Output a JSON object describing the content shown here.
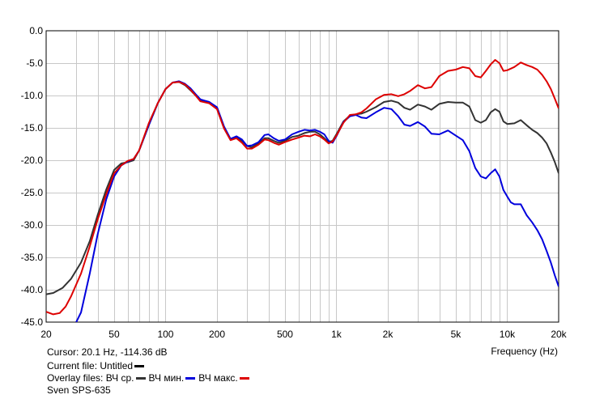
{
  "status": {
    "cursor": "Cursor: 20.1 Hz, -114.36 dB",
    "current_file_label": "Current file: Untitled",
    "current_file_color": "#000000",
    "overlay_label": "Overlay files:",
    "project_name": "Sven SPS-635"
  },
  "chart_data": {
    "type": "line",
    "title": "",
    "xlabel": "Frequency (Hz)",
    "ylabel": "",
    "xscale": "log",
    "xlim": [
      20,
      20000
    ],
    "ylim": [
      -45,
      0
    ],
    "grid": true,
    "x_ticks": [
      {
        "value": 20,
        "label": "20"
      },
      {
        "value": 50,
        "label": "50"
      },
      {
        "value": 100,
        "label": "100"
      },
      {
        "value": 200,
        "label": "200"
      },
      {
        "value": 500,
        "label": "500"
      },
      {
        "value": 1000,
        "label": "1k"
      },
      {
        "value": 2000,
        "label": "2k"
      },
      {
        "value": 5000,
        "label": "5k"
      },
      {
        "value": 10000,
        "label": "10k"
      },
      {
        "value": 20000,
        "label": "20k"
      }
    ],
    "y_ticks": [
      0,
      -5,
      -10,
      -15,
      -20,
      -25,
      -30,
      -35,
      -40,
      -45
    ],
    "y_tick_labels": [
      "0.0",
      "-5.0",
      "-10.0",
      "-15.0",
      "-20.0",
      "-25.0",
      "-30.0",
      "-35.0",
      "-40.0",
      "-45.0"
    ],
    "series": [
      {
        "name": "ВЧ ср.",
        "color": "#333333",
        "points": [
          [
            20,
            -40.7
          ],
          [
            22,
            -40.5
          ],
          [
            25,
            -39.7
          ],
          [
            28,
            -38.3
          ],
          [
            32,
            -35.8
          ],
          [
            36,
            -32.5
          ],
          [
            40,
            -28.5
          ],
          [
            45,
            -24.5
          ],
          [
            50,
            -21.5
          ],
          [
            55,
            -20.5
          ],
          [
            60,
            -20.3
          ],
          [
            65,
            -20.0
          ],
          [
            70,
            -18.5
          ],
          [
            80,
            -14.5
          ],
          [
            90,
            -11.2
          ],
          [
            100,
            -9.0
          ],
          [
            110,
            -8.0
          ],
          [
            120,
            -7.9
          ],
          [
            130,
            -8.4
          ],
          [
            140,
            -9.2
          ],
          [
            150,
            -10.0
          ],
          [
            160,
            -10.8
          ],
          [
            180,
            -11.0
          ],
          [
            200,
            -12.0
          ],
          [
            220,
            -15.0
          ],
          [
            240,
            -16.8
          ],
          [
            260,
            -16.5
          ],
          [
            280,
            -17.0
          ],
          [
            300,
            -17.8
          ],
          [
            320,
            -18.0
          ],
          [
            350,
            -17.4
          ],
          [
            380,
            -16.6
          ],
          [
            400,
            -16.6
          ],
          [
            430,
            -17.0
          ],
          [
            460,
            -17.3
          ],
          [
            500,
            -17.0
          ],
          [
            550,
            -16.4
          ],
          [
            600,
            -16.2
          ],
          [
            650,
            -15.8
          ],
          [
            700,
            -15.6
          ],
          [
            750,
            -15.6
          ],
          [
            800,
            -16.0
          ],
          [
            850,
            -16.6
          ],
          [
            900,
            -17.2
          ],
          [
            950,
            -17.0
          ],
          [
            1000,
            -16.0
          ],
          [
            1100,
            -14.0
          ],
          [
            1200,
            -13.1
          ],
          [
            1300,
            -12.9
          ],
          [
            1400,
            -12.8
          ],
          [
            1500,
            -12.5
          ],
          [
            1700,
            -11.8
          ],
          [
            1900,
            -11.0
          ],
          [
            2100,
            -10.8
          ],
          [
            2300,
            -11.1
          ],
          [
            2500,
            -11.9
          ],
          [
            2700,
            -12.2
          ],
          [
            3000,
            -11.4
          ],
          [
            3300,
            -11.7
          ],
          [
            3600,
            -12.2
          ],
          [
            4000,
            -11.3
          ],
          [
            4500,
            -11.0
          ],
          [
            5000,
            -11.1
          ],
          [
            5500,
            -11.1
          ],
          [
            6000,
            -11.7
          ],
          [
            6500,
            -13.8
          ],
          [
            7000,
            -14.2
          ],
          [
            7500,
            -13.8
          ],
          [
            8000,
            -12.6
          ],
          [
            8500,
            -12.1
          ],
          [
            9000,
            -12.5
          ],
          [
            9500,
            -14.0
          ],
          [
            10000,
            -14.4
          ],
          [
            11000,
            -14.3
          ],
          [
            12000,
            -13.8
          ],
          [
            13000,
            -14.6
          ],
          [
            14000,
            -15.3
          ],
          [
            15000,
            -15.8
          ],
          [
            16000,
            -16.5
          ],
          [
            17000,
            -17.4
          ],
          [
            18000,
            -18.8
          ],
          [
            19000,
            -20.3
          ],
          [
            20000,
            -22.0
          ]
        ]
      },
      {
        "name": "ВЧ мин.",
        "color": "#0000dd",
        "points": [
          [
            30,
            -45.0
          ],
          [
            32,
            -43.5
          ],
          [
            36,
            -37.5
          ],
          [
            40,
            -31.5
          ],
          [
            45,
            -26.0
          ],
          [
            50,
            -22.5
          ],
          [
            55,
            -20.8
          ],
          [
            60,
            -20.2
          ],
          [
            65,
            -19.8
          ],
          [
            70,
            -18.5
          ],
          [
            80,
            -14.5
          ],
          [
            90,
            -11.2
          ],
          [
            100,
            -9.0
          ],
          [
            110,
            -8.0
          ],
          [
            120,
            -7.8
          ],
          [
            130,
            -8.2
          ],
          [
            140,
            -8.9
          ],
          [
            150,
            -9.8
          ],
          [
            160,
            -10.6
          ],
          [
            180,
            -11.0
          ],
          [
            200,
            -11.8
          ],
          [
            220,
            -14.8
          ],
          [
            240,
            -16.7
          ],
          [
            260,
            -16.3
          ],
          [
            280,
            -16.8
          ],
          [
            300,
            -17.8
          ],
          [
            320,
            -17.7
          ],
          [
            350,
            -17.2
          ],
          [
            380,
            -16.1
          ],
          [
            400,
            -16.0
          ],
          [
            430,
            -16.6
          ],
          [
            460,
            -17.0
          ],
          [
            500,
            -16.8
          ],
          [
            550,
            -16.0
          ],
          [
            600,
            -15.6
          ],
          [
            650,
            -15.3
          ],
          [
            700,
            -15.4
          ],
          [
            750,
            -15.3
          ],
          [
            800,
            -15.6
          ],
          [
            850,
            -16.0
          ],
          [
            900,
            -17.0
          ],
          [
            950,
            -17.3
          ],
          [
            1000,
            -16.3
          ],
          [
            1100,
            -14.1
          ],
          [
            1200,
            -13.2
          ],
          [
            1300,
            -13.0
          ],
          [
            1400,
            -13.4
          ],
          [
            1500,
            -13.5
          ],
          [
            1700,
            -12.6
          ],
          [
            1900,
            -11.9
          ],
          [
            2100,
            -12.1
          ],
          [
            2300,
            -13.2
          ],
          [
            2500,
            -14.5
          ],
          [
            2700,
            -14.7
          ],
          [
            3000,
            -14.1
          ],
          [
            3300,
            -14.8
          ],
          [
            3600,
            -15.9
          ],
          [
            4000,
            -16.0
          ],
          [
            4500,
            -15.4
          ],
          [
            5000,
            -16.2
          ],
          [
            5500,
            -16.9
          ],
          [
            6000,
            -18.6
          ],
          [
            6500,
            -21.2
          ],
          [
            7000,
            -22.5
          ],
          [
            7500,
            -22.8
          ],
          [
            8000,
            -22.0
          ],
          [
            8500,
            -21.4
          ],
          [
            9000,
            -22.5
          ],
          [
            9500,
            -24.6
          ],
          [
            10000,
            -25.6
          ],
          [
            10500,
            -26.5
          ],
          [
            11000,
            -26.8
          ],
          [
            12000,
            -26.8
          ],
          [
            13000,
            -28.5
          ],
          [
            14000,
            -29.6
          ],
          [
            15000,
            -30.8
          ],
          [
            16000,
            -32.2
          ],
          [
            17000,
            -34.0
          ],
          [
            18000,
            -35.8
          ],
          [
            19000,
            -37.8
          ],
          [
            20000,
            -39.5
          ]
        ]
      },
      {
        "name": "ВЧ макс.",
        "color": "#dd0000",
        "points": [
          [
            20,
            -43.4
          ],
          [
            22,
            -43.8
          ],
          [
            24,
            -43.6
          ],
          [
            26,
            -42.6
          ],
          [
            28,
            -41.0
          ],
          [
            32,
            -37.5
          ],
          [
            36,
            -33.3
          ],
          [
            40,
            -29.2
          ],
          [
            45,
            -25.2
          ],
          [
            50,
            -22.0
          ],
          [
            55,
            -20.8
          ],
          [
            60,
            -20.1
          ],
          [
            65,
            -19.8
          ],
          [
            70,
            -18.5
          ],
          [
            80,
            -14.2
          ],
          [
            90,
            -11.2
          ],
          [
            100,
            -9.0
          ],
          [
            110,
            -8.0
          ],
          [
            120,
            -7.9
          ],
          [
            130,
            -8.3
          ],
          [
            140,
            -9.1
          ],
          [
            150,
            -10.0
          ],
          [
            160,
            -10.9
          ],
          [
            180,
            -11.2
          ],
          [
            200,
            -12.1
          ],
          [
            220,
            -15.1
          ],
          [
            240,
            -16.9
          ],
          [
            260,
            -16.6
          ],
          [
            280,
            -17.3
          ],
          [
            300,
            -18.2
          ],
          [
            320,
            -18.2
          ],
          [
            350,
            -17.6
          ],
          [
            380,
            -16.8
          ],
          [
            400,
            -16.9
          ],
          [
            430,
            -17.3
          ],
          [
            460,
            -17.6
          ],
          [
            500,
            -17.2
          ],
          [
            550,
            -16.8
          ],
          [
            600,
            -16.5
          ],
          [
            650,
            -16.2
          ],
          [
            700,
            -16.3
          ],
          [
            750,
            -16.0
          ],
          [
            800,
            -16.3
          ],
          [
            850,
            -16.8
          ],
          [
            900,
            -17.4
          ],
          [
            950,
            -17.1
          ],
          [
            1000,
            -16.2
          ],
          [
            1100,
            -14.2
          ],
          [
            1200,
            -13.0
          ],
          [
            1300,
            -12.9
          ],
          [
            1400,
            -12.6
          ],
          [
            1500,
            -12.0
          ],
          [
            1700,
            -10.6
          ],
          [
            1900,
            -9.9
          ],
          [
            2100,
            -9.8
          ],
          [
            2300,
            -10.1
          ],
          [
            2500,
            -9.8
          ],
          [
            2700,
            -9.3
          ],
          [
            3000,
            -8.4
          ],
          [
            3300,
            -8.9
          ],
          [
            3600,
            -8.7
          ],
          [
            4000,
            -7.0
          ],
          [
            4500,
            -6.2
          ],
          [
            5000,
            -6.0
          ],
          [
            5500,
            -5.6
          ],
          [
            6000,
            -5.8
          ],
          [
            6500,
            -7.0
          ],
          [
            7000,
            -7.2
          ],
          [
            7500,
            -6.2
          ],
          [
            8000,
            -5.2
          ],
          [
            8500,
            -4.5
          ],
          [
            9000,
            -5.0
          ],
          [
            9500,
            -6.2
          ],
          [
            10000,
            -6.1
          ],
          [
            11000,
            -5.6
          ],
          [
            12000,
            -4.9
          ],
          [
            13000,
            -5.3
          ],
          [
            14000,
            -5.6
          ],
          [
            15000,
            -6.0
          ],
          [
            16000,
            -6.8
          ],
          [
            17000,
            -7.8
          ],
          [
            18000,
            -9.0
          ],
          [
            19000,
            -10.5
          ],
          [
            20000,
            -12.0
          ]
        ]
      }
    ]
  }
}
